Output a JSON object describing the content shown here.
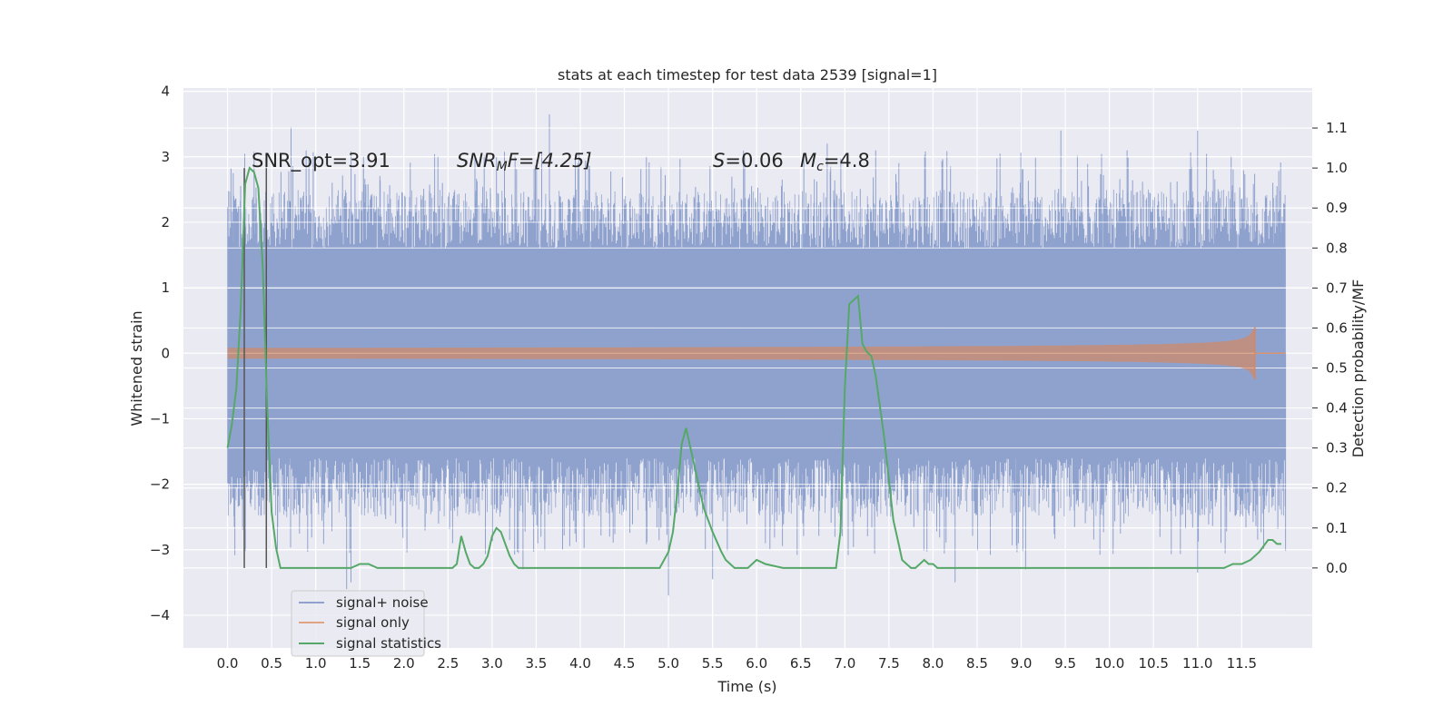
{
  "chart_data": {
    "type": "line",
    "title": "stats at each timestep for test data 2539 [signal=1]",
    "xlabel": "Time (s)",
    "ylabel": "Whitened strain",
    "ylabel_right": "Detection probability/MF",
    "xlim": [
      -0.5,
      12.3
    ],
    "ylim": [
      -4.5,
      4.05
    ],
    "ylim_right": [
      -0.2,
      1.2
    ],
    "x_ticks": [
      "0.0",
      "0.5",
      "1.0",
      "1.5",
      "2.0",
      "2.5",
      "3.0",
      "3.5",
      "4.0",
      "4.5",
      "5.0",
      "5.5",
      "6.0",
      "6.5",
      "7.0",
      "7.5",
      "8.0",
      "8.5",
      "9.0",
      "9.5",
      "10.0",
      "10.5",
      "11.0",
      "11.5"
    ],
    "y_ticks_left": [
      "−4",
      "−3",
      "−2",
      "−1",
      "0",
      "1",
      "2",
      "3",
      "4"
    ],
    "y_ticks_right": [
      "0.0",
      "0.1",
      "0.2",
      "0.3",
      "0.4",
      "0.5",
      "0.6",
      "0.7",
      "0.8",
      "0.9",
      "1.0",
      "1.1"
    ],
    "grid": true,
    "legend_position": "lower-left",
    "annotations": {
      "snr_opt": "SNR_opt=3.91",
      "snr_mf_main": "SNR",
      "snr_mf_sub": "M",
      "snr_mf_rest": "F=[4.25]",
      "s_label": "S",
      "s_value": "=0.06",
      "mc_label": "M",
      "mc_sub": "c",
      "mc_value": "=4.8"
    },
    "vertical_markers_x": [
      0.19,
      0.44
    ],
    "series": [
      {
        "name": "signal+ noise",
        "color": "#8fa2ce",
        "x_range": [
          0.0,
          12.0
        ],
        "envelope_outer": [
          -2.5,
          2.5
        ],
        "spike_max": 3.65,
        "spike_min": -3.7,
        "spike_samples": [
          [
            0.72,
            3.45
          ],
          [
            1.35,
            -3.6
          ],
          [
            1.4,
            -3.5
          ],
          [
            3.05,
            3.0
          ],
          [
            3.35,
            -3.3
          ],
          [
            3.65,
            3.65
          ],
          [
            4.75,
            3.0
          ],
          [
            5.0,
            -3.7
          ],
          [
            5.5,
            -3.45
          ],
          [
            6.8,
            3.2
          ],
          [
            7.35,
            3.1
          ],
          [
            8.25,
            -3.5
          ],
          [
            9.05,
            -3.3
          ],
          [
            9.45,
            3.4
          ],
          [
            10.2,
            3.1
          ],
          [
            11.0,
            3.4
          ],
          [
            11.0,
            -3.35
          ],
          [
            11.9,
            2.55
          ]
        ]
      },
      {
        "name": "signal only",
        "color": "#dd8452",
        "chirp": {
          "t_start": 0.0,
          "t_merge": 11.65,
          "amp_merge": 0.4,
          "amp_early": 0.0
        }
      },
      {
        "name": "signal statistics",
        "color": "#55a868",
        "axis": "right",
        "x": [
          0.0,
          0.05,
          0.1,
          0.15,
          0.2,
          0.25,
          0.3,
          0.35,
          0.4,
          0.45,
          0.5,
          0.55,
          0.6,
          0.65,
          0.7,
          1.4,
          1.5,
          1.6,
          1.7,
          2.55,
          2.6,
          2.65,
          2.7,
          2.75,
          2.8,
          2.85,
          2.9,
          2.95,
          3.0,
          3.05,
          3.1,
          3.15,
          3.2,
          3.25,
          3.3,
          3.35,
          3.6,
          4.0,
          4.4,
          4.6,
          4.9,
          5.0,
          5.05,
          5.1,
          5.15,
          5.2,
          5.3,
          5.4,
          5.5,
          5.6,
          5.65,
          5.7,
          5.75,
          5.8,
          5.9,
          6.0,
          6.1,
          6.3,
          6.5,
          6.9,
          6.95,
          7.0,
          7.05,
          7.1,
          7.15,
          7.2,
          7.25,
          7.3,
          7.35,
          7.4,
          7.45,
          7.5,
          7.55,
          7.6,
          7.65,
          7.7,
          7.75,
          7.8,
          7.85,
          7.9,
          7.95,
          8.0,
          8.05,
          8.1,
          8.2,
          9.0,
          10.0,
          11.0,
          11.2,
          11.3,
          11.4,
          11.5,
          11.6,
          11.7,
          11.8,
          11.85,
          11.9,
          11.95
        ],
        "values": [
          0.3,
          0.36,
          0.45,
          0.65,
          0.96,
          1.0,
          0.99,
          0.95,
          0.75,
          0.4,
          0.14,
          0.05,
          0.0,
          0.0,
          0.0,
          0.0,
          0.01,
          0.01,
          0.0,
          0.0,
          0.01,
          0.08,
          0.04,
          0.01,
          0.0,
          0.0,
          0.01,
          0.03,
          0.08,
          0.1,
          0.09,
          0.06,
          0.03,
          0.01,
          0.0,
          0.0,
          0.0,
          0.0,
          0.0,
          0.0,
          0.0,
          0.04,
          0.09,
          0.19,
          0.31,
          0.35,
          0.25,
          0.15,
          0.09,
          0.04,
          0.02,
          0.01,
          0.0,
          0.0,
          0.0,
          0.02,
          0.01,
          0.0,
          0.0,
          0.0,
          0.09,
          0.45,
          0.66,
          0.67,
          0.68,
          0.56,
          0.54,
          0.53,
          0.48,
          0.4,
          0.32,
          0.22,
          0.12,
          0.07,
          0.02,
          0.01,
          0.0,
          0.0,
          0.01,
          0.02,
          0.01,
          0.01,
          0.0,
          0.0,
          0.0,
          0.0,
          0.0,
          0.0,
          0.0,
          0.0,
          0.01,
          0.01,
          0.02,
          0.04,
          0.07,
          0.07,
          0.06,
          0.06
        ]
      }
    ]
  }
}
